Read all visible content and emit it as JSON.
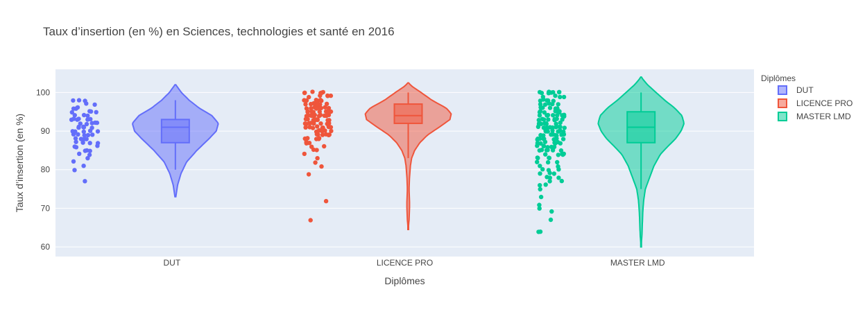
{
  "chart_data": {
    "type": "violin",
    "title": "Taux d’insertion (en %) en Sciences, technologies et santé en 2016",
    "xlabel": "Diplômes",
    "ylabel": "Taux d’insertion (en %)",
    "ylim": [
      57.5,
      106
    ],
    "yticks": [
      60,
      70,
      80,
      90,
      100
    ],
    "grid": true,
    "legend": {
      "title": "Diplômes",
      "placement": "right"
    },
    "categories": [
      "DUT",
      "LICENCE PRO",
      "MASTER LMD"
    ],
    "series": [
      {
        "name": "DUT",
        "color": "#636efa",
        "box": {
          "min": 80,
          "q1": 87,
          "median": 91,
          "q3": 93,
          "max": 98
        },
        "violin_range": [
          73,
          102
        ],
        "density": [
          [
            73,
            0.01
          ],
          [
            76,
            0.05
          ],
          [
            79,
            0.13
          ],
          [
            82,
            0.26
          ],
          [
            85,
            0.5
          ],
          [
            88,
            0.78
          ],
          [
            90,
            0.95
          ],
          [
            92,
            1.0
          ],
          [
            94,
            0.85
          ],
          [
            96,
            0.55
          ],
          [
            98,
            0.32
          ],
          [
            100,
            0.14
          ],
          [
            102,
            0.01
          ]
        ],
        "points": [
          77,
          80,
          81,
          82,
          83,
          84,
          84,
          85,
          85,
          85,
          86,
          86,
          86,
          87,
          87,
          87,
          87,
          88,
          88,
          88,
          88,
          89,
          89,
          89,
          89,
          89,
          90,
          90,
          90,
          90,
          90,
          91,
          91,
          91,
          91,
          91,
          91,
          92,
          92,
          92,
          92,
          92,
          93,
          93,
          93,
          93,
          93,
          93,
          94,
          94,
          94,
          95,
          95,
          95,
          95,
          96,
          96,
          96,
          97,
          97,
          98,
          98,
          98
        ]
      },
      {
        "name": "LICENCE PRO",
        "color": "#ef553b",
        "box": {
          "min": 83,
          "q1": 92,
          "median": 94,
          "q3": 97,
          "max": 100
        },
        "violin_range": [
          64.5,
          102.5
        ],
        "density": [
          [
            64.5,
            0.0
          ],
          [
            67,
            0.02
          ],
          [
            70,
            0.03
          ],
          [
            72,
            0.03
          ],
          [
            75,
            0.02
          ],
          [
            78,
            0.03
          ],
          [
            81,
            0.05
          ],
          [
            83,
            0.08
          ],
          [
            85,
            0.15
          ],
          [
            87,
            0.27
          ],
          [
            89,
            0.45
          ],
          [
            91,
            0.72
          ],
          [
            93,
            0.97
          ],
          [
            94.5,
            1.0
          ],
          [
            96,
            0.88
          ],
          [
            98,
            0.55
          ],
          [
            100,
            0.3
          ],
          [
            101.5,
            0.1
          ],
          [
            102.5,
            0.0
          ]
        ],
        "points": [
          67,
          72,
          79,
          81,
          82,
          83,
          84,
          85,
          85,
          86,
          86,
          87,
          87,
          87,
          88,
          88,
          88,
          88,
          88,
          89,
          89,
          89,
          89,
          89,
          89,
          90,
          90,
          90,
          90,
          90,
          90,
          90,
          91,
          91,
          91,
          91,
          91,
          91,
          91,
          91,
          92,
          92,
          92,
          92,
          92,
          92,
          92,
          92,
          92,
          93,
          93,
          93,
          93,
          93,
          93,
          93,
          93,
          93,
          93,
          94,
          94,
          94,
          94,
          94,
          94,
          94,
          94,
          94,
          94,
          94,
          95,
          95,
          95,
          95,
          95,
          95,
          95,
          95,
          95,
          95,
          96,
          96,
          96,
          96,
          96,
          96,
          96,
          96,
          96,
          97,
          97,
          97,
          97,
          97,
          97,
          97,
          97,
          98,
          98,
          98,
          98,
          98,
          98,
          98,
          99,
          99,
          99,
          99,
          99,
          100,
          100,
          100,
          100,
          100,
          100,
          100
        ]
      },
      {
        "name": "MASTER LMD",
        "color": "#00cc96",
        "box": {
          "min": 75,
          "q1": 87,
          "median": 91,
          "q3": 95,
          "max": 100
        },
        "violin_range": [
          60,
          104
        ],
        "density": [
          [
            60,
            0.0
          ],
          [
            63,
            0.02
          ],
          [
            66,
            0.03
          ],
          [
            69,
            0.04
          ],
          [
            72,
            0.06
          ],
          [
            75,
            0.1
          ],
          [
            78,
            0.2
          ],
          [
            81,
            0.3
          ],
          [
            84,
            0.45
          ],
          [
            86,
            0.62
          ],
          [
            88,
            0.8
          ],
          [
            90,
            0.93
          ],
          [
            92,
            1.0
          ],
          [
            94,
            0.95
          ],
          [
            96,
            0.78
          ],
          [
            98,
            0.55
          ],
          [
            100,
            0.35
          ],
          [
            102,
            0.15
          ],
          [
            104,
            0.0
          ]
        ],
        "points": [
          64,
          64,
          67,
          69,
          70,
          71,
          73,
          75,
          76,
          76,
          77,
          77,
          78,
          78,
          78,
          79,
          79,
          79,
          80,
          80,
          80,
          81,
          81,
          82,
          82,
          82,
          83,
          83,
          83,
          83,
          84,
          84,
          84,
          84,
          84,
          85,
          85,
          85,
          85,
          85,
          85,
          86,
          86,
          86,
          86,
          86,
          86,
          87,
          87,
          87,
          87,
          87,
          87,
          87,
          88,
          88,
          88,
          88,
          88,
          88,
          88,
          88,
          89,
          89,
          89,
          89,
          89,
          89,
          89,
          89,
          90,
          90,
          90,
          90,
          90,
          90,
          90,
          90,
          90,
          91,
          91,
          91,
          91,
          91,
          91,
          91,
          91,
          91,
          91,
          92,
          92,
          92,
          92,
          92,
          92,
          92,
          92,
          92,
          93,
          93,
          93,
          93,
          93,
          93,
          93,
          93,
          94,
          94,
          94,
          94,
          94,
          94,
          94,
          94,
          95,
          95,
          95,
          95,
          95,
          95,
          95,
          96,
          96,
          96,
          96,
          96,
          96,
          97,
          97,
          97,
          97,
          97,
          98,
          98,
          98,
          98,
          98,
          99,
          99,
          99,
          99,
          100,
          100,
          100,
          100,
          100,
          100,
          100,
          100
        ]
      }
    ]
  }
}
